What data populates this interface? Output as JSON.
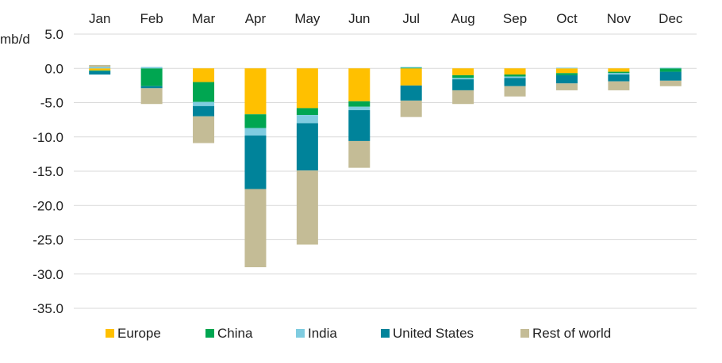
{
  "chart_data": {
    "type": "bar",
    "stacked": true,
    "title": "",
    "unit_label": "mb/d",
    "categories": [
      "Jan",
      "Feb",
      "Mar",
      "Apr",
      "May",
      "Jun",
      "Jul",
      "Aug",
      "Sep",
      "Oct",
      "Nov",
      "Dec"
    ],
    "ylim": [
      -35,
      5
    ],
    "yticks": [
      5,
      0,
      -5,
      -10,
      -15,
      -20,
      -25,
      -30,
      -35
    ],
    "ytick_labels": [
      "5.0",
      "0.0",
      "-5.0",
      "-10.0",
      "-15.0",
      "-20.0",
      "-25.0",
      "-30.0",
      "-35.0"
    ],
    "grid": true,
    "legend_position": "bottom",
    "series": [
      {
        "name": "Europe",
        "color": "#FFC000",
        "values": [
          -0.3,
          0.0,
          -2.0,
          -6.7,
          -5.8,
          -4.8,
          -2.5,
          -1.0,
          -0.9,
          -0.7,
          -0.5,
          0.0
        ]
      },
      {
        "name": "China",
        "color": "#00A651",
        "values": [
          -0.1,
          -2.6,
          -2.9,
          -2.0,
          -1.0,
          -0.8,
          0.1,
          -0.4,
          -0.3,
          -0.3,
          -0.2,
          -0.5
        ]
      },
      {
        "name": "India",
        "color": "#7FCCE0",
        "values": [
          0.2,
          0.2,
          -0.6,
          -1.1,
          -1.2,
          -0.5,
          0.1,
          -0.2,
          -0.2,
          0.1,
          -0.2,
          0.1
        ]
      },
      {
        "name": "United States",
        "color": "#00839A",
        "values": [
          -0.5,
          -0.3,
          -1.5,
          -7.8,
          -6.9,
          -4.5,
          -2.2,
          -1.6,
          -1.2,
          -1.2,
          -1.0,
          -1.3
        ]
      },
      {
        "name": "Rest of world",
        "color": "#C4BC96",
        "values": [
          0.3,
          -2.3,
          -3.9,
          -11.4,
          -10.8,
          -3.9,
          -2.4,
          -2.0,
          -1.5,
          -1.0,
          -1.3,
          -0.8
        ]
      }
    ]
  }
}
